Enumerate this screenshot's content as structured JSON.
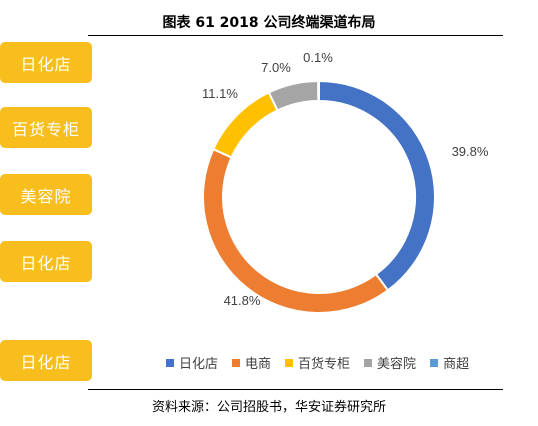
{
  "title": "图表 61 2018 公司终端渠道布局",
  "source": "资料来源：公司招股书，华安证券研究所",
  "side_buttons": [
    "日化店",
    "百货专柜",
    "美容院",
    "日化店",
    "日化店"
  ],
  "chart_data": {
    "type": "pie",
    "style": "donut",
    "title": "图表 61 2018 公司终端渠道布局",
    "categories": [
      "日化店",
      "电商",
      "百货专柜",
      "美容院",
      "商超"
    ],
    "values": [
      39.8,
      41.8,
      11.1,
      7.0,
      0.1
    ],
    "value_labels": [
      "39.8%",
      "41.8%",
      "11.1%",
      "7.0%",
      "0.1%"
    ],
    "colors": [
      "#4472C4",
      "#ED7D31",
      "#FFC000",
      "#A5A5A5",
      "#5B9BD5"
    ],
    "legend": "bottom"
  }
}
